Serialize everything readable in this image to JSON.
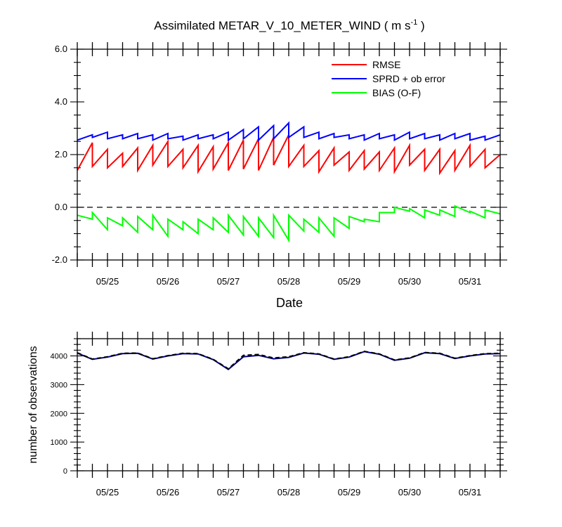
{
  "chart_data": [
    {
      "type": "line",
      "title_main": "Assimilated METAR_V_10_METER_WIND ( m s",
      "title_sup": "-1",
      "title_end": " )",
      "xlabel": "Date",
      "ylabel": "",
      "ylim": [
        -2.0,
        6.0
      ],
      "yticks": [
        "-2.0",
        "0.0",
        "2.0",
        "4.0",
        "6.0"
      ],
      "xlim": [
        "05/24 12:00",
        "05/31 12:00"
      ],
      "xticklabels": [
        "05/25",
        "05/26",
        "05/27",
        "05/28",
        "05/29",
        "05/30",
        "05/31"
      ],
      "zero_line": 0.0,
      "legend_position": "top-right",
      "series": [
        {
          "name": "RMSE",
          "color": "#ff0000",
          "x": [
            "05/24 12:00",
            "05/24 18:00",
            "05/24 18:00",
            "05/25 00:00",
            "05/25 00:00",
            "05/25 06:00",
            "05/25 06:00",
            "05/25 12:00",
            "05/25 12:00",
            "05/25 18:00",
            "05/25 18:00",
            "05/26 00:00",
            "05/26 00:00",
            "05/26 06:00",
            "05/26 06:00",
            "05/26 12:00",
            "05/26 12:00",
            "05/26 18:00",
            "05/26 18:00",
            "05/27 00:00",
            "05/27 00:00",
            "05/27 06:00",
            "05/27 06:00",
            "05/27 12:00",
            "05/27 12:00",
            "05/27 18:00",
            "05/27 18:00",
            "05/28 00:00",
            "05/28 00:00",
            "05/28 06:00",
            "05/28 06:00",
            "05/28 12:00",
            "05/28 12:00",
            "05/28 18:00",
            "05/28 18:00",
            "05/29 00:00",
            "05/29 00:00",
            "05/29 06:00",
            "05/29 06:00",
            "05/29 12:00",
            "05/29 12:00",
            "05/29 18:00",
            "05/29 18:00",
            "05/30 00:00",
            "05/30 00:00",
            "05/30 06:00",
            "05/30 06:00",
            "05/30 12:00",
            "05/30 12:00",
            "05/30 18:00",
            "05/30 18:00",
            "05/31 00:00",
            "05/31 00:00",
            "05/31 06:00",
            "05/31 06:00",
            "05/31 12:00"
          ],
          "values": [
            1.4,
            2.45,
            1.55,
            2.2,
            1.5,
            2.05,
            1.55,
            2.25,
            1.4,
            2.35,
            1.6,
            2.5,
            1.55,
            2.2,
            1.5,
            2.35,
            1.35,
            2.3,
            1.45,
            2.45,
            1.4,
            2.55,
            1.45,
            2.6,
            1.4,
            2.65,
            1.6,
            2.75,
            1.55,
            2.35,
            1.55,
            2.15,
            1.35,
            2.25,
            1.6,
            2.1,
            1.4,
            2.15,
            1.45,
            2.1,
            1.4,
            2.25,
            1.35,
            2.35,
            1.6,
            2.2,
            1.4,
            2.2,
            1.3,
            2.15,
            1.4,
            2.35,
            1.55,
            2.2,
            1.5,
            2.0
          ]
        },
        {
          "name": "SPRD + ob error",
          "color": "#0000ff",
          "x": [
            "05/24 12:00",
            "05/24 18:00",
            "05/24 18:00",
            "05/25 00:00",
            "05/25 00:00",
            "05/25 06:00",
            "05/25 06:00",
            "05/25 12:00",
            "05/25 12:00",
            "05/25 18:00",
            "05/25 18:00",
            "05/26 00:00",
            "05/26 00:00",
            "05/26 06:00",
            "05/26 06:00",
            "05/26 12:00",
            "05/26 12:00",
            "05/26 18:00",
            "05/26 18:00",
            "05/27 00:00",
            "05/27 00:00",
            "05/27 06:00",
            "05/27 06:00",
            "05/27 12:00",
            "05/27 12:00",
            "05/27 18:00",
            "05/27 18:00",
            "05/28 00:00",
            "05/28 00:00",
            "05/28 06:00",
            "05/28 06:00",
            "05/28 12:00",
            "05/28 12:00",
            "05/28 18:00",
            "05/28 18:00",
            "05/29 00:00",
            "05/29 00:00",
            "05/29 06:00",
            "05/29 06:00",
            "05/29 12:00",
            "05/29 12:00",
            "05/29 18:00",
            "05/29 18:00",
            "05/30 00:00",
            "05/30 00:00",
            "05/30 06:00",
            "05/30 06:00",
            "05/30 12:00",
            "05/30 12:00",
            "05/30 18:00",
            "05/30 18:00",
            "05/31 00:00",
            "05/31 00:00",
            "05/31 06:00",
            "05/31 06:00",
            "05/31 12:00"
          ],
          "values": [
            2.55,
            2.75,
            2.65,
            2.85,
            2.6,
            2.75,
            2.6,
            2.8,
            2.6,
            2.75,
            2.55,
            2.8,
            2.6,
            2.7,
            2.55,
            2.75,
            2.6,
            2.75,
            2.6,
            2.85,
            2.55,
            2.95,
            2.6,
            3.05,
            2.55,
            3.1,
            2.6,
            3.2,
            2.65,
            3.05,
            2.65,
            2.85,
            2.6,
            2.8,
            2.65,
            2.75,
            2.6,
            2.75,
            2.55,
            2.8,
            2.6,
            2.75,
            2.55,
            2.85,
            2.6,
            2.8,
            2.6,
            2.75,
            2.55,
            2.8,
            2.6,
            2.8,
            2.55,
            2.7,
            2.55,
            2.75
          ]
        },
        {
          "name": "BIAS (O-F)",
          "color": "#00ff00",
          "x": [
            "05/24 12:00",
            "05/24 18:00",
            "05/24 18:00",
            "05/25 00:00",
            "05/25 00:00",
            "05/25 06:00",
            "05/25 06:00",
            "05/25 12:00",
            "05/25 12:00",
            "05/25 18:00",
            "05/25 18:00",
            "05/26 00:00",
            "05/26 00:00",
            "05/26 06:00",
            "05/26 06:00",
            "05/26 12:00",
            "05/26 12:00",
            "05/26 18:00",
            "05/26 18:00",
            "05/27 00:00",
            "05/27 00:00",
            "05/27 06:00",
            "05/27 06:00",
            "05/27 12:00",
            "05/27 12:00",
            "05/27 18:00",
            "05/27 18:00",
            "05/28 00:00",
            "05/28 00:00",
            "05/28 06:00",
            "05/28 06:00",
            "05/28 12:00",
            "05/28 12:00",
            "05/28 18:00",
            "05/28 18:00",
            "05/29 00:00",
            "05/29 00:00",
            "05/29 06:00",
            "05/29 06:00",
            "05/29 12:00",
            "05/29 12:00",
            "05/29 18:00",
            "05/29 18:00",
            "05/30 00:00",
            "05/30 00:00",
            "05/30 06:00",
            "05/30 06:00",
            "05/30 12:00",
            "05/30 12:00",
            "05/30 18:00",
            "05/30 18:00",
            "05/31 00:00",
            "05/31 00:00",
            "05/31 06:00",
            "05/31 06:00",
            "05/31 12:00"
          ],
          "values": [
            -0.3,
            -0.45,
            -0.2,
            -0.85,
            -0.4,
            -0.7,
            -0.4,
            -0.95,
            -0.35,
            -0.85,
            -0.3,
            -1.1,
            -0.45,
            -0.85,
            -0.55,
            -1.0,
            -0.45,
            -0.85,
            -0.4,
            -0.95,
            -0.3,
            -1.05,
            -0.35,
            -1.1,
            -0.4,
            -1.15,
            -0.3,
            -1.25,
            -0.3,
            -0.9,
            -0.45,
            -0.95,
            -0.4,
            -1.1,
            -0.4,
            -0.8,
            -0.35,
            -0.55,
            -0.45,
            -0.55,
            -0.2,
            -0.2,
            0.0,
            -0.15,
            -0.05,
            -0.4,
            -0.1,
            -0.3,
            -0.1,
            -0.35,
            0.05,
            -0.2,
            -0.15,
            -0.4,
            -0.1,
            -0.25
          ]
        }
      ]
    },
    {
      "type": "line",
      "ylabel": "number of observations",
      "ylim": [
        0,
        4600
      ],
      "yticks": [
        "0",
        "1000",
        "2000",
        "3000",
        "4000"
      ],
      "xlim": [
        "05/24 12:00",
        "05/31 12:00"
      ],
      "xticklabels": [
        "05/25",
        "05/26",
        "05/27",
        "05/28",
        "05/29",
        "05/30",
        "05/31"
      ],
      "series": [
        {
          "color": "#000080",
          "style": "solid",
          "x": [
            "05/24 12:00",
            "05/24 18:00",
            "05/25 00:00",
            "05/25 06:00",
            "05/25 12:00",
            "05/25 18:00",
            "05/26 00:00",
            "05/26 06:00",
            "05/26 12:00",
            "05/26 18:00",
            "05/27 00:00",
            "05/27 06:00",
            "05/27 12:00",
            "05/27 18:00",
            "05/28 00:00",
            "05/28 06:00",
            "05/28 12:00",
            "05/28 18:00",
            "05/29 00:00",
            "05/29 06:00",
            "05/29 12:00",
            "05/29 18:00",
            "05/30 00:00",
            "05/30 06:00",
            "05/30 12:00",
            "05/30 18:00",
            "05/31 00:00",
            "05/31 06:00",
            "05/31 12:00"
          ],
          "values": [
            4100,
            3880,
            3960,
            4080,
            4090,
            3890,
            4000,
            4080,
            4070,
            3870,
            3530,
            3970,
            4020,
            3900,
            3950,
            4100,
            4060,
            3880,
            3960,
            4150,
            4060,
            3850,
            3920,
            4110,
            4080,
            3910,
            4000,
            4070,
            4080
          ]
        },
        {
          "color": "#000000",
          "style": "dashed",
          "x": [
            "05/24 12:00",
            "05/24 18:00",
            "05/25 00:00",
            "05/25 06:00",
            "05/25 12:00",
            "05/25 18:00",
            "05/26 00:00",
            "05/26 06:00",
            "05/26 12:00",
            "05/26 18:00",
            "05/27 00:00",
            "05/27 06:00",
            "05/27 12:00",
            "05/27 18:00",
            "05/28 00:00",
            "05/28 06:00",
            "05/28 12:00",
            "05/28 18:00",
            "05/29 00:00",
            "05/29 06:00",
            "05/29 12:00",
            "05/29 18:00",
            "05/30 00:00",
            "05/30 06:00",
            "05/30 12:00",
            "05/30 18:00",
            "05/31 00:00",
            "05/31 06:00",
            "05/31 12:00"
          ],
          "values": [
            4110,
            3890,
            3970,
            4090,
            4100,
            3900,
            4010,
            4090,
            4080,
            3880,
            3550,
            4020,
            4050,
            3930,
            3970,
            4110,
            4070,
            3890,
            3970,
            4160,
            4070,
            3860,
            3930,
            4120,
            4090,
            3920,
            4010,
            4080,
            4090
          ]
        }
      ]
    }
  ]
}
